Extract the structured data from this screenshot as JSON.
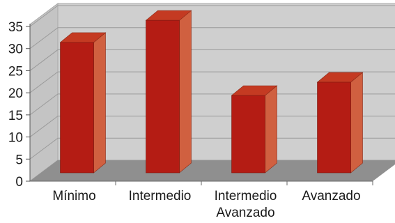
{
  "chart_data": {
    "type": "bar",
    "categories": [
      [
        "Mínimo"
      ],
      [
        "Intermedio"
      ],
      [
        "Intermedio",
        "Avanzado"
      ],
      [
        "Avanzado"
      ]
    ],
    "values": [
      29.5,
      34.5,
      17.5,
      20.5
    ],
    "ylim": [
      0,
      35
    ],
    "yticks": [
      "0",
      "5",
      "10",
      "15",
      "20",
      "25",
      "30",
      "35"
    ],
    "grid": true,
    "title": "",
    "xlabel": "",
    "ylabel": "",
    "colors": {
      "bar_front": "#b41c14",
      "bar_side": "#d06040",
      "bar_top": "#c43a22",
      "back_wall": "#cfcfcf",
      "side_wall": "#c4c4c4",
      "floor": "#8f8f8f",
      "grid": "#9a9a9a"
    }
  }
}
